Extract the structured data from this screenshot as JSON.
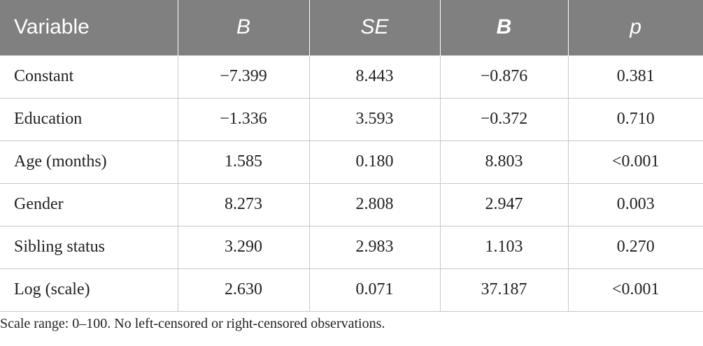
{
  "table": {
    "headers": [
      "Variable",
      "B",
      "SE",
      "B",
      "p"
    ],
    "rows": [
      [
        "Constant",
        "−7.399",
        "8.443",
        "−0.876",
        "0.381"
      ],
      [
        "Education",
        "−1.336",
        "3.593",
        "−0.372",
        "0.710"
      ],
      [
        "Age (months)",
        "1.585",
        "0.180",
        "8.803",
        "<0.001"
      ],
      [
        "Gender",
        "8.273",
        "2.808",
        "2.947",
        "0.003"
      ],
      [
        "Sibling status",
        "3.290",
        "2.983",
        "1.103",
        "0.270"
      ],
      [
        "Log (scale)",
        "2.630",
        "0.071",
        "37.187",
        "<0.001"
      ]
    ]
  },
  "footnote": "Scale range: 0–100. No left-censored or right-censored observations."
}
